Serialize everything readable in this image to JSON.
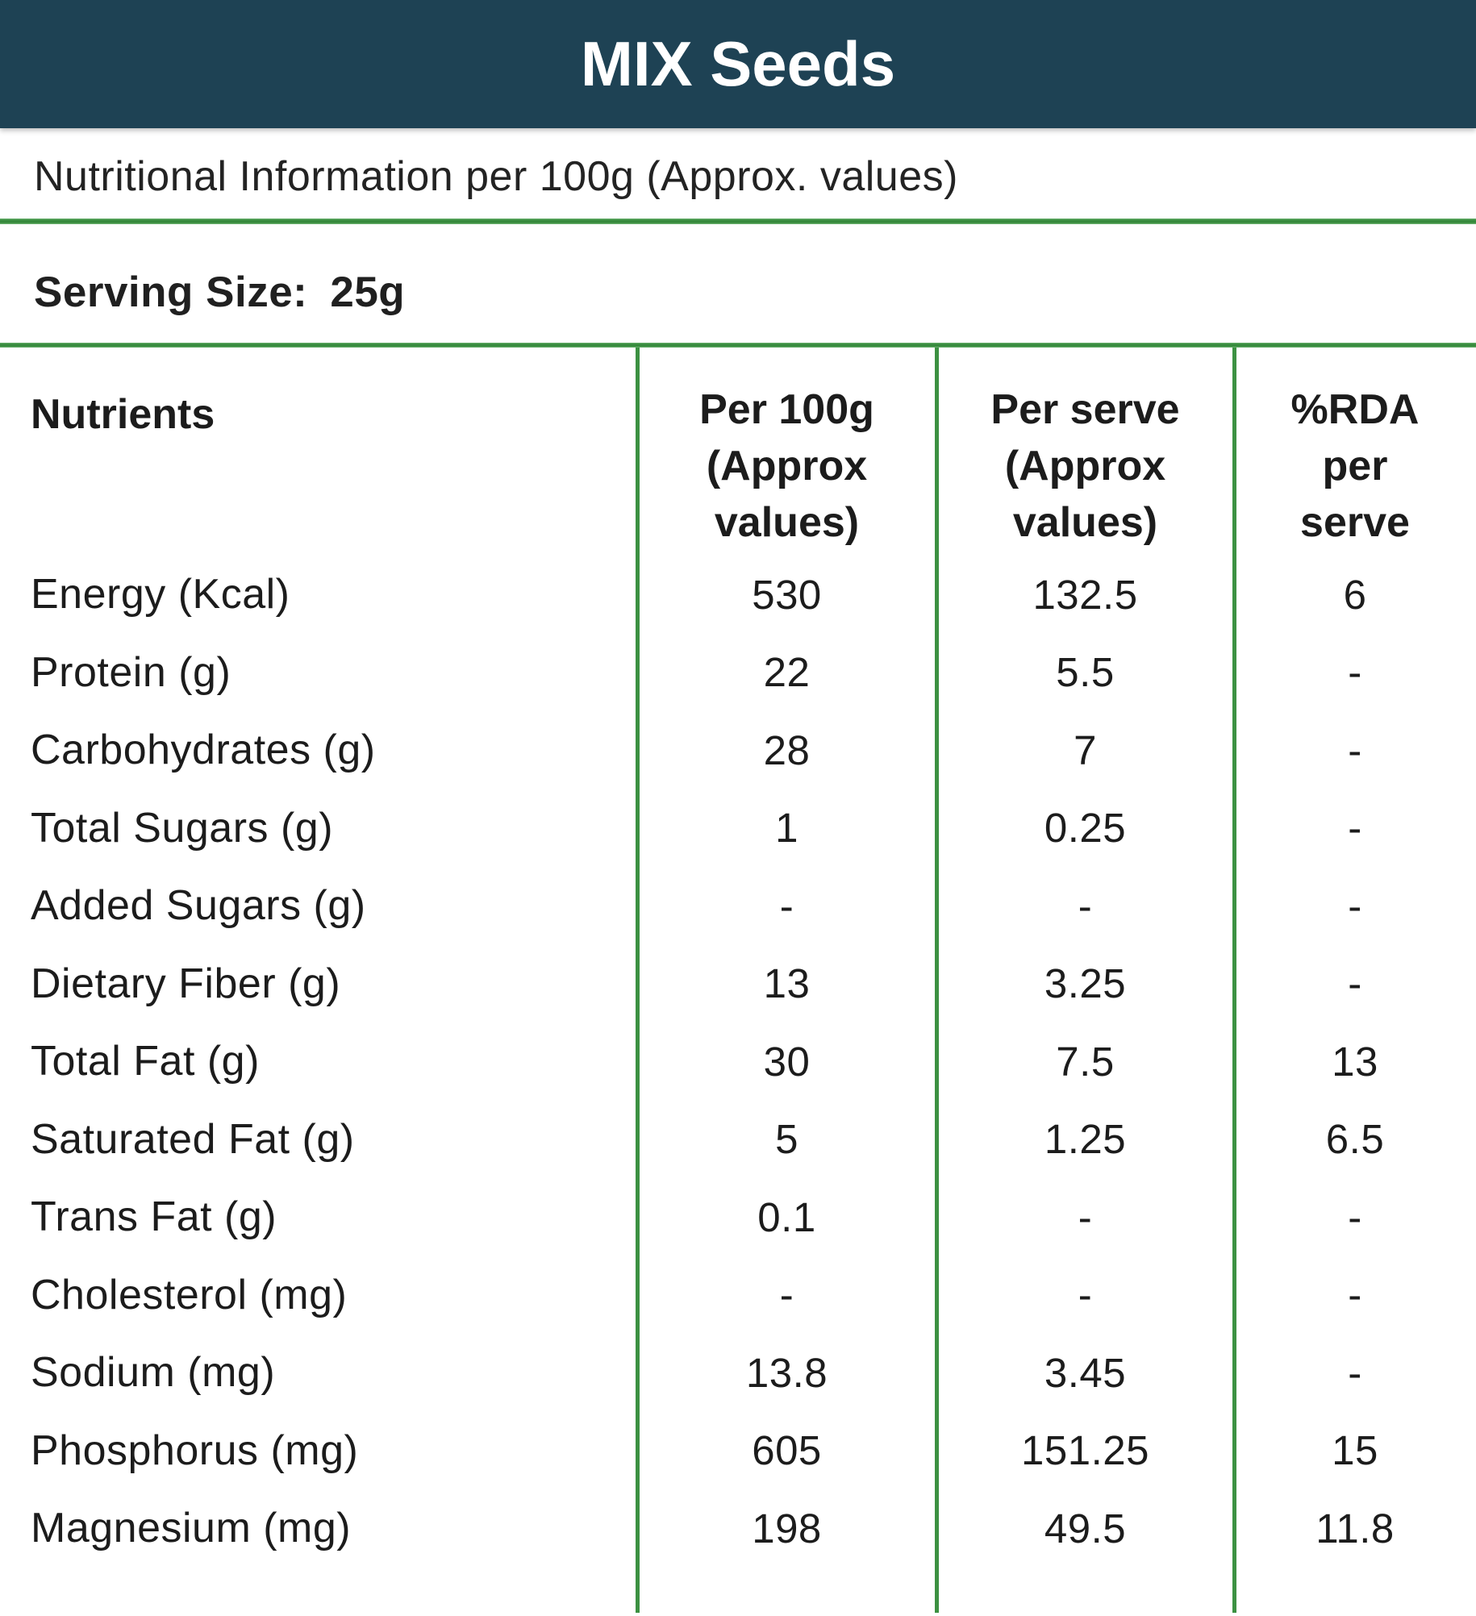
{
  "title_bar": {
    "title": "MIX Seeds"
  },
  "subtitle": "Nutritional Information per 100g (Approx. values)",
  "serving": {
    "label": "Serving Size:",
    "value": "25g"
  },
  "colors": {
    "header_bg": "#1e4254",
    "accent_green": "#3c9142",
    "title_text": "#ffffff",
    "body_text": "#1e1e1e"
  },
  "table": {
    "col_headers": [
      {
        "lines": [
          "Nutrients",
          "",
          ""
        ]
      },
      {
        "lines": [
          "Per 100g",
          "(Approx",
          "values)"
        ]
      },
      {
        "lines": [
          "Per serve",
          "(Approx",
          "values)"
        ]
      },
      {
        "lines": [
          "%RDA",
          "per",
          "serve"
        ]
      }
    ],
    "rows": [
      {
        "label": "Energy (Kcal)",
        "per_100g": "530",
        "per_serve": "132.5",
        "rda": "6"
      },
      {
        "label": "Protein (g)",
        "per_100g": "22",
        "per_serve": "5.5",
        "rda": "-"
      },
      {
        "label": "Carbohydrates (g)",
        "per_100g": "28",
        "per_serve": "7",
        "rda": "-"
      },
      {
        "label": "Total Sugars (g)",
        "per_100g": "1",
        "per_serve": "0.25",
        "rda": "-"
      },
      {
        "label": "Added Sugars (g)",
        "per_100g": "-",
        "per_serve": "-",
        "rda": "-"
      },
      {
        "label": "Dietary Fiber (g)",
        "per_100g": "13",
        "per_serve": "3.25",
        "rda": "-"
      },
      {
        "label": "Total Fat (g)",
        "per_100g": "30",
        "per_serve": "7.5",
        "rda": "13"
      },
      {
        "label": "Saturated Fat (g)",
        "per_100g": "5",
        "per_serve": "1.25",
        "rda": "6.5"
      },
      {
        "label": "Trans Fat (g)",
        "per_100g": "0.1",
        "per_serve": "-",
        "rda": "-"
      },
      {
        "label": "Cholesterol (mg)",
        "per_100g": "-",
        "per_serve": "-",
        "rda": "-"
      },
      {
        "label": "Sodium (mg)",
        "per_100g": "13.8",
        "per_serve": "3.45",
        "rda": "-"
      },
      {
        "label": "Phosphorus (mg)",
        "per_100g": "605",
        "per_serve": "151.25",
        "rda": "15"
      },
      {
        "label": "Magnesium (mg)",
        "per_100g": "198",
        "per_serve": "49.5",
        "rda": "11.8"
      }
    ]
  }
}
